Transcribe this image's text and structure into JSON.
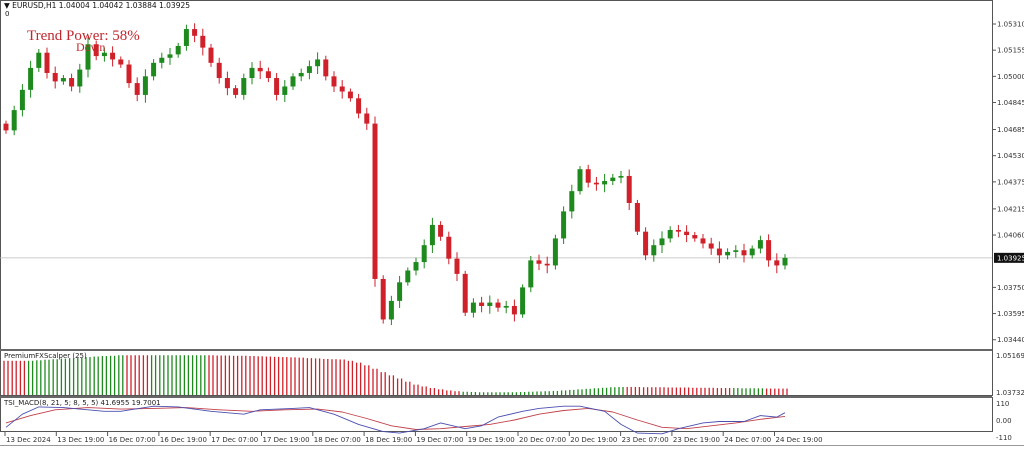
{
  "header": {
    "symbol_info": "EURUSD,H1  1.04004 1.04042 1.03884 1.03925",
    "subwindow_index": "0"
  },
  "overlay": {
    "trend_power": "Trend Power: 58%",
    "direction": "Down"
  },
  "colors": {
    "bull": "#1e8a1e",
    "bear": "#d0202a",
    "grid": "#888888",
    "tsi_main": "#4a4fb0",
    "tsi_signal": "#c0404a"
  },
  "price_axis": {
    "labels": [
      "1.05310",
      "1.05155",
      "1.05000",
      "1.04845",
      "1.04685",
      "1.04530",
      "1.04375",
      "1.04215",
      "1.04060",
      "1.03750",
      "1.03595",
      "1.03440"
    ],
    "current_price": "1.03925",
    "max": 1.0531,
    "step": 0.00155
  },
  "closes": [
    1.0468,
    1.048,
    1.0492,
    1.0505,
    1.0514,
    1.0502,
    1.0497,
    1.0499,
    1.0494,
    1.0504,
    1.0519,
    1.0512,
    1.0514,
    1.051,
    1.0507,
    1.0496,
    1.0489,
    1.05,
    1.0508,
    1.0511,
    1.0513,
    1.0518,
    1.0528,
    1.0524,
    1.0517,
    1.0508,
    1.0499,
    1.0493,
    1.0489,
    1.0499,
    1.0505,
    1.0503,
    1.0499,
    1.0489,
    1.0494,
    1.05,
    1.0502,
    1.0506,
    1.051,
    1.05,
    1.0494,
    1.0491,
    1.0487,
    1.0478,
    1.0472,
    1.038,
    1.0356,
    1.0367,
    1.0378,
    1.0385,
    1.039,
    1.04,
    1.0412,
    1.0405,
    1.0392,
    1.0383,
    1.036,
    1.0366,
    1.0364,
    1.0366,
    1.0363,
    1.0364,
    1.0359,
    1.0375,
    1.0391,
    1.0389,
    1.0388,
    1.0404,
    1.042,
    1.0432,
    1.0445,
    1.0437,
    1.0436,
    1.0438,
    1.044,
    1.0441,
    1.0425,
    1.0408,
    1.0394,
    1.04,
    1.0404,
    1.0409,
    1.0408,
    1.0406,
    1.0404,
    1.0401,
    1.0398,
    1.0394,
    1.0396,
    1.0397,
    1.0394,
    1.0398,
    1.0403,
    1.0391,
    1.0388,
    1.03925
  ],
  "scalper": {
    "label": "PremiumFXScalper (25)",
    "axis": [
      "1.05169",
      "1.03732"
    ],
    "max": 1.05169,
    "min": 1.03732,
    "values": [
      1.0495,
      1.0495,
      1.0495,
      1.0495,
      1.0497,
      1.0499,
      1.0501,
      1.0503,
      1.0505,
      1.0507,
      1.0509,
      1.0511,
      1.0513,
      1.0514,
      1.0516,
      1.0516,
      1.0516,
      1.0516,
      1.0516,
      1.0516,
      1.0516,
      1.0516,
      1.0516,
      1.0516,
      1.0516,
      1.0516,
      1.0515,
      1.0515,
      1.0514,
      1.0514,
      1.0513,
      1.0512,
      1.0511,
      1.051,
      1.0509,
      1.0508,
      1.0507,
      1.0505,
      1.0504,
      1.0502,
      1.0501,
      1.05,
      1.0495,
      1.0488,
      1.0478,
      1.0465,
      1.0452,
      1.044,
      1.0428,
      1.0416,
      1.0405,
      1.0398,
      1.0392,
      1.0387,
      1.0383,
      1.038,
      1.0378,
      1.0377,
      1.0376,
      1.0376,
      1.0376,
      1.0376,
      1.0376,
      1.0377,
      1.0378,
      1.0379,
      1.038,
      1.0381,
      1.0383,
      1.0385,
      1.0387,
      1.0389,
      1.0391,
      1.0393,
      1.0395,
      1.0396,
      1.0396,
      1.0396,
      1.0395,
      1.0395,
      1.0395,
      1.0394,
      1.0394,
      1.0394,
      1.0393,
      1.0393,
      1.0393,
      1.0392,
      1.0392,
      1.0392,
      1.0391,
      1.0391,
      1.0391,
      1.039,
      1.039,
      1.039
    ],
    "colors": "RRRGGGGGGGGGGGGRRRGGGGGGGRRRRRRRRRRRRRRRRRRRRRRRRRRRRRRRGGGGGGGGGGGGGGGGGGGGRRRRRRRRRRRRRGGGGRRR"
  },
  "tsi": {
    "label": "TSI_MACD(8, 21, 5; 8, 5, 5) 41.6955 19.7001",
    "axis": [
      "110",
      "0.00",
      "-110"
    ],
    "max": 110,
    "min": -110,
    "main": [
      [
        0,
        -50
      ],
      [
        2,
        40
      ],
      [
        4,
        90
      ],
      [
        7,
        85
      ],
      [
        9,
        75
      ],
      [
        12,
        60
      ],
      [
        14,
        60
      ],
      [
        18,
        95
      ],
      [
        21,
        90
      ],
      [
        25,
        60
      ],
      [
        29,
        40
      ],
      [
        31,
        70
      ],
      [
        35,
        80
      ],
      [
        37,
        85
      ],
      [
        40,
        40
      ],
      [
        43,
        -30
      ],
      [
        46,
        -80
      ],
      [
        48,
        -90
      ],
      [
        51,
        -60
      ],
      [
        53,
        -20
      ],
      [
        56,
        -60
      ],
      [
        58,
        -40
      ],
      [
        60,
        20
      ],
      [
        63,
        60
      ],
      [
        65,
        80
      ],
      [
        68,
        95
      ],
      [
        70,
        95
      ],
      [
        73,
        60
      ],
      [
        75,
        -30
      ],
      [
        77,
        -90
      ],
      [
        80,
        -95
      ],
      [
        82,
        -60
      ],
      [
        85,
        -20
      ],
      [
        87,
        -10
      ],
      [
        90,
        -10
      ],
      [
        92,
        30
      ],
      [
        94,
        20
      ],
      [
        95,
        50
      ]
    ],
    "signal": [
      [
        0,
        -20
      ],
      [
        3,
        30
      ],
      [
        6,
        70
      ],
      [
        10,
        85
      ],
      [
        14,
        75
      ],
      [
        18,
        80
      ],
      [
        22,
        85
      ],
      [
        26,
        70
      ],
      [
        30,
        60
      ],
      [
        34,
        70
      ],
      [
        38,
        75
      ],
      [
        41,
        55
      ],
      [
        44,
        10
      ],
      [
        47,
        -40
      ],
      [
        50,
        -65
      ],
      [
        53,
        -60
      ],
      [
        56,
        -45
      ],
      [
        59,
        -30
      ],
      [
        62,
        0
      ],
      [
        65,
        40
      ],
      [
        68,
        65
      ],
      [
        71,
        80
      ],
      [
        74,
        55
      ],
      [
        77,
        0
      ],
      [
        80,
        -50
      ],
      [
        83,
        -60
      ],
      [
        86,
        -40
      ],
      [
        89,
        -20
      ],
      [
        92,
        5
      ],
      [
        95,
        25
      ]
    ]
  },
  "time_axis": [
    "13 Dec 2024",
    "13 Dec 19:00",
    "16 Dec 07:00",
    "16 Dec 19:00",
    "17 Dec 07:00",
    "17 Dec 19:00",
    "18 Dec 07:00",
    "18 Dec 19:00",
    "19 Dec 07:00",
    "19 Dec 19:00",
    "20 Dec 07:00",
    "20 Dec 19:00",
    "23 Dec 07:00",
    "23 Dec 19:00",
    "24 Dec 07:00",
    "24 Dec 19:00"
  ]
}
